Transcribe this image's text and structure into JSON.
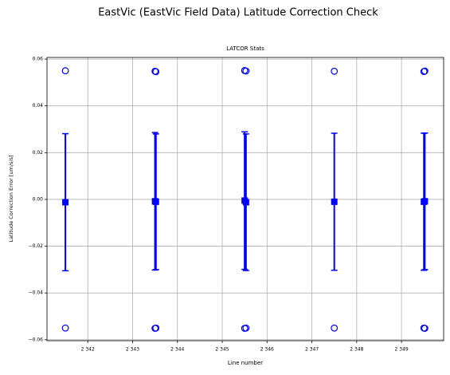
{
  "chart_data": {
    "type": "errorbar",
    "suptitle": "EastVic (EastVic Field Data) Latitude Correction Check",
    "title": "LATCOR Stats",
    "xlabel": "Line number",
    "ylabel": "Latitude Correction Error [um/s/s]",
    "grid": true,
    "xlim": [
      2341.09,
      2349.94
    ],
    "ylim": [
      -0.0604,
      0.0607
    ],
    "xticks": [
      {
        "value": 2342,
        "label": "2 342"
      },
      {
        "value": 2343,
        "label": "2 343"
      },
      {
        "value": 2344,
        "label": "2 344"
      },
      {
        "value": 2345,
        "label": "2 345"
      },
      {
        "value": 2346,
        "label": "2 346"
      },
      {
        "value": 2347,
        "label": "2 347"
      },
      {
        "value": 2348,
        "label": "2 348"
      },
      {
        "value": 2349,
        "label": "2 349"
      }
    ],
    "yticks": [
      {
        "value": -0.06,
        "label": "−0.06"
      },
      {
        "value": -0.04,
        "label": "−0.04"
      },
      {
        "value": -0.02,
        "label": "−0.02"
      },
      {
        "value": 0,
        "label": "0.00"
      },
      0.02,
      0.04,
      0.06
    ],
    "series": [
      {
        "color": "#0000ff",
        "x": [
          2341.5,
          2343.5,
          2343.52,
          2345.5,
          2345.53,
          2347.5,
          2349.5,
          2349.52
        ],
        "values": [
          -0.0012,
          -0.0008,
          -0.001,
          -0.0005,
          -0.0012,
          -0.001,
          -0.001,
          -0.0008
        ],
        "errors": [
          0.0293,
          0.0294,
          0.029,
          0.0294,
          0.0292,
          0.0293,
          0.0293,
          0.0292
        ],
        "max": [
          0.055,
          0.0548,
          0.0546,
          0.0551,
          0.0549,
          0.0548,
          0.0547,
          0.0549
        ],
        "min": [
          -0.055,
          -0.0551,
          -0.055,
          -0.0551,
          -0.055,
          -0.055,
          -0.055,
          -0.0551
        ]
      }
    ]
  }
}
